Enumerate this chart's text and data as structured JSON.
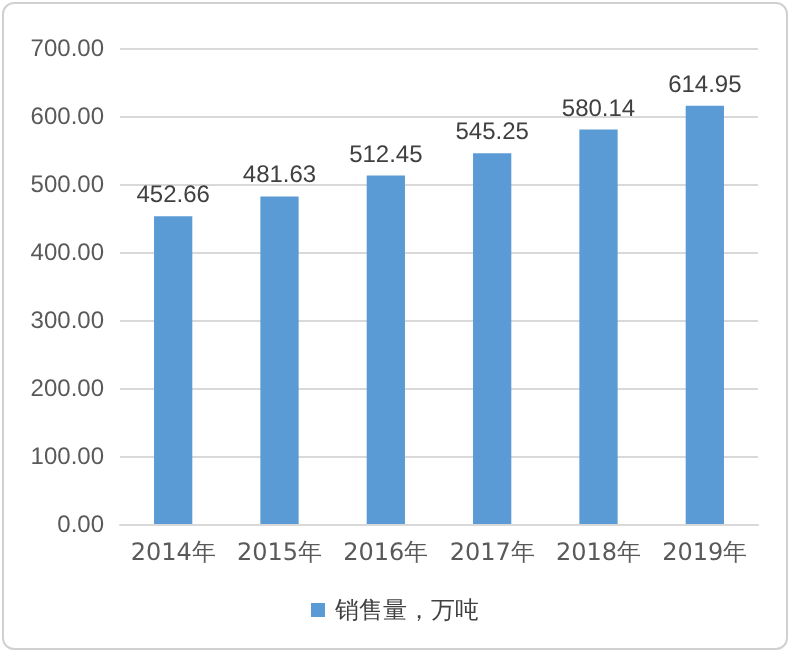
{
  "chart_data": {
    "type": "bar",
    "categories": [
      "2014年",
      "2015年",
      "2016年",
      "2017年",
      "2018年",
      "2019年"
    ],
    "series": [
      {
        "name": "销售量，万吨",
        "color": "#5b9bd5",
        "values": [
          452.66,
          481.63,
          512.45,
          545.25,
          580.14,
          614.95
        ]
      }
    ],
    "ylim": [
      0,
      700
    ],
    "yticks": [
      {
        "value": 0,
        "label": "0.00"
      },
      {
        "value": 100,
        "label": "100.00"
      },
      {
        "value": 200,
        "label": "200.00"
      },
      {
        "value": 300,
        "label": "300.00"
      },
      {
        "value": 400,
        "label": "400.00"
      },
      {
        "value": 500,
        "label": "500.00"
      },
      {
        "value": 600,
        "label": "600.00"
      },
      {
        "value": 700,
        "label": "700.00"
      }
    ],
    "grid": "y",
    "legend": "bottom",
    "data_labels": true
  }
}
